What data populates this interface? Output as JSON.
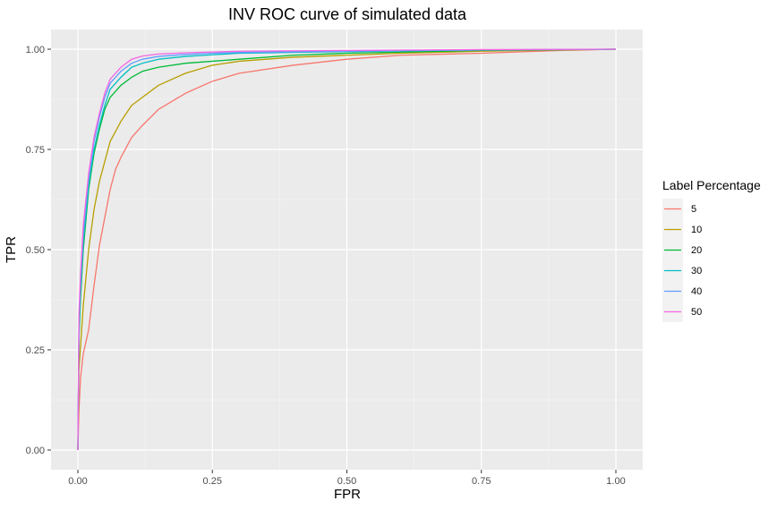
{
  "chart_data": {
    "type": "line",
    "title": "INV ROC curve of simulated data",
    "xlabel": "FPR",
    "ylabel": "TPR",
    "xlim": [
      0,
      1
    ],
    "ylim": [
      0,
      1
    ],
    "x_ticks": [
      "0.00",
      "0.25",
      "0.50",
      "0.75",
      "1.00"
    ],
    "y_ticks": [
      "0.00",
      "0.25",
      "0.50",
      "0.75",
      "1.00"
    ],
    "grid": true,
    "legend": {
      "title": "Label Percentage",
      "position": "right"
    },
    "series": [
      {
        "name": "5",
        "color": "#F8766D",
        "x": [
          0,
          0.002,
          0.005,
          0.01,
          0.02,
          0.03,
          0.04,
          0.05,
          0.06,
          0.07,
          0.08,
          0.1,
          0.12,
          0.15,
          0.2,
          0.25,
          0.3,
          0.4,
          0.5,
          0.6,
          0.75,
          0.9,
          1.0
        ],
        "y": [
          0,
          0.1,
          0.18,
          0.24,
          0.3,
          0.41,
          0.51,
          0.58,
          0.65,
          0.7,
          0.73,
          0.78,
          0.81,
          0.85,
          0.89,
          0.92,
          0.94,
          0.96,
          0.975,
          0.985,
          0.99,
          0.997,
          1.0
        ]
      },
      {
        "name": "10",
        "color": "#B79F00",
        "x": [
          0,
          0.002,
          0.005,
          0.01,
          0.02,
          0.03,
          0.04,
          0.05,
          0.06,
          0.08,
          0.1,
          0.12,
          0.15,
          0.2,
          0.25,
          0.3,
          0.4,
          0.5,
          0.6,
          0.75,
          1.0
        ],
        "y": [
          0,
          0.2,
          0.26,
          0.36,
          0.5,
          0.6,
          0.67,
          0.72,
          0.77,
          0.82,
          0.86,
          0.88,
          0.91,
          0.94,
          0.96,
          0.97,
          0.98,
          0.985,
          0.99,
          0.995,
          1.0
        ]
      },
      {
        "name": "20",
        "color": "#00BA38",
        "x": [
          0,
          0.002,
          0.005,
          0.01,
          0.02,
          0.03,
          0.04,
          0.05,
          0.06,
          0.08,
          0.1,
          0.12,
          0.15,
          0.2,
          0.25,
          0.3,
          0.4,
          0.5,
          0.75,
          1.0
        ],
        "y": [
          0,
          0.28,
          0.38,
          0.5,
          0.65,
          0.74,
          0.8,
          0.85,
          0.88,
          0.91,
          0.93,
          0.945,
          0.955,
          0.965,
          0.97,
          0.975,
          0.985,
          0.99,
          0.997,
          1.0
        ]
      },
      {
        "name": "30",
        "color": "#00BFC4",
        "x": [
          0,
          0.002,
          0.005,
          0.01,
          0.02,
          0.03,
          0.04,
          0.05,
          0.06,
          0.08,
          0.1,
          0.12,
          0.15,
          0.2,
          0.25,
          0.3,
          0.5,
          0.75,
          1.0
        ],
        "y": [
          0,
          0.3,
          0.4,
          0.52,
          0.66,
          0.75,
          0.81,
          0.86,
          0.9,
          0.93,
          0.955,
          0.965,
          0.975,
          0.982,
          0.986,
          0.99,
          0.994,
          0.998,
          1.0
        ]
      },
      {
        "name": "40",
        "color": "#619CFF",
        "x": [
          0,
          0.002,
          0.005,
          0.01,
          0.02,
          0.03,
          0.04,
          0.05,
          0.06,
          0.08,
          0.1,
          0.12,
          0.15,
          0.2,
          0.25,
          0.3,
          0.5,
          0.75,
          1.0
        ],
        "y": [
          0,
          0.32,
          0.42,
          0.54,
          0.68,
          0.77,
          0.83,
          0.88,
          0.915,
          0.945,
          0.965,
          0.975,
          0.982,
          0.987,
          0.99,
          0.992,
          0.995,
          0.998,
          1.0
        ]
      },
      {
        "name": "50",
        "color": "#F564E3",
        "x": [
          0,
          0.002,
          0.005,
          0.01,
          0.02,
          0.03,
          0.04,
          0.05,
          0.06,
          0.08,
          0.1,
          0.12,
          0.15,
          0.2,
          0.25,
          0.3,
          0.5,
          0.75,
          1.0
        ],
        "y": [
          0,
          0.34,
          0.44,
          0.56,
          0.69,
          0.78,
          0.84,
          0.89,
          0.925,
          0.955,
          0.975,
          0.983,
          0.988,
          0.991,
          0.993,
          0.995,
          0.997,
          0.999,
          1.0
        ]
      }
    ]
  }
}
